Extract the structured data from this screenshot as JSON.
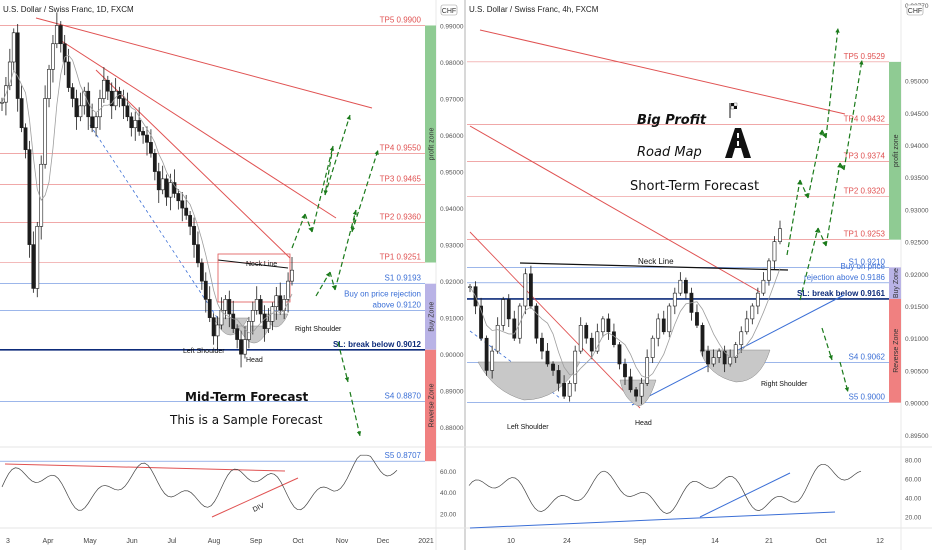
{
  "chart_data": [
    {
      "type": "candlestick",
      "title": "U.S. Dollar / Swiss Franc, 1D, FXCM",
      "currency_badge": "CHF",
      "x_ticks": [
        "3",
        "Apr",
        "May",
        "Jun",
        "Jul",
        "Aug",
        "Sep",
        "Oct",
        "Nov",
        "Dec",
        "2021"
      ],
      "y_ticks": [
        "0.99000",
        "0.98000",
        "0.97000",
        "0.96000",
        "0.95000",
        "0.94000",
        "0.93000",
        "0.92000",
        "0.91000",
        "0.90000",
        "0.89000",
        "0.88000"
      ],
      "ylim": [
        0.8765,
        0.9915
      ],
      "levels": [
        {
          "label": "TP5 0.9900",
          "value": 0.99,
          "color": "#e05252"
        },
        {
          "label": "TP4 0.9550",
          "value": 0.955,
          "color": "#e05252"
        },
        {
          "label": "TP3 0.9465",
          "value": 0.9465,
          "color": "#e05252"
        },
        {
          "label": "TP2 0.9360",
          "value": 0.936,
          "color": "#e05252"
        },
        {
          "label": "TP1 0.9251",
          "value": 0.9251,
          "color": "#e05252"
        },
        {
          "label": "S1 0.9193",
          "value": 0.9193,
          "color": "#3b6fd6"
        },
        {
          "label": "Buy on price rejection",
          "value": null,
          "color": "#3b6fd6"
        },
        {
          "label": "above 0.9120",
          "value": 0.912,
          "color": "#3b6fd6"
        },
        {
          "label": "SL: break below 0.9012",
          "value": 0.9012,
          "color": "#0d2b7a"
        },
        {
          "label": "S4 0.8870",
          "value": 0.887,
          "color": "#3b6fd6"
        },
        {
          "label": "S5 0.8707",
          "value": 0.8707,
          "color": "#3b6fd6"
        }
      ],
      "zones": {
        "profit": "profit zone",
        "buy": "Buy Zone",
        "reverse": "Reverse Zone"
      },
      "annotations": {
        "neck": "Neck Line",
        "left_shoulder": "Left Shoulder",
        "head": "Head",
        "right_shoulder": "Right Shoulder",
        "forecast": "Mid-Term Forecast",
        "sample": "This is a Sample Forecast",
        "div": "DIV"
      },
      "close_path": [
        0.969,
        0.9735,
        0.98,
        0.988,
        0.97,
        0.962,
        0.956,
        0.93,
        0.918,
        0.935,
        0.952,
        0.97,
        0.978,
        0.985,
        0.99,
        0.985,
        0.98,
        0.973,
        0.97,
        0.965,
        0.968,
        0.972,
        0.965,
        0.962,
        0.965,
        0.97,
        0.975,
        0.972,
        0.968,
        0.972,
        0.97,
        0.968,
        0.965,
        0.962,
        0.964,
        0.961,
        0.96,
        0.958,
        0.955,
        0.95,
        0.945,
        0.948,
        0.943,
        0.947,
        0.944,
        0.942,
        0.94,
        0.938,
        0.935,
        0.93,
        0.925,
        0.92,
        0.915,
        0.91,
        0.905,
        0.908,
        0.912,
        0.915,
        0.911,
        0.907,
        0.904,
        0.9,
        0.904,
        0.909,
        0.912,
        0.915,
        0.911,
        0.907,
        0.909,
        0.913,
        0.916,
        0.912,
        0.915,
        0.92,
        0.923
      ],
      "indicator": {
        "ticks": [
          "60.00",
          "40.00",
          "20.00"
        ],
        "ylim": [
          10,
          78
        ]
      }
    },
    {
      "type": "candlestick",
      "title": "U.S. Dollar / Swiss Franc, 4h, FXCM",
      "currency_badge": "CHF",
      "x_ticks": [
        "10",
        "24",
        "Sep",
        "14",
        "21",
        "Oct",
        "12"
      ],
      "y_ticks": [
        "0.95000",
        "0.94500",
        "0.94000",
        "0.93500",
        "0.93000",
        "0.92500",
        "0.92000",
        "0.91500",
        "0.91000",
        "0.90500",
        "0.90000",
        "0.89500"
      ],
      "top_tick": "0.92770",
      "ylim": [
        0.8942,
        0.9594
      ],
      "levels": [
        {
          "label": "TP5 0.9529",
          "value": 0.9529,
          "color": "#e05252"
        },
        {
          "label": "TP4 0.9432",
          "value": 0.9432,
          "color": "#e05252"
        },
        {
          "label": "TP3 0.9374",
          "value": 0.9374,
          "color": "#e05252"
        },
        {
          "label": "TP2 0.9320",
          "value": 0.932,
          "color": "#e05252"
        },
        {
          "label": "TP1 0.9253",
          "value": 0.9253,
          "color": "#e05252"
        },
        {
          "label": "S1 0.9210",
          "value": 0.921,
          "color": "#3b6fd6"
        },
        {
          "label": "Buy on price",
          "value": null,
          "color": "#3b6fd6"
        },
        {
          "label": "rejection above 0.9186",
          "value": 0.9186,
          "color": "#3b6fd6"
        },
        {
          "label": "SL: break below 0.9161",
          "value": 0.9161,
          "color": "#0d2b7a"
        },
        {
          "label": "S4 0.9062",
          "value": 0.9062,
          "color": "#3b6fd6"
        },
        {
          "label": "S5 0.9000",
          "value": 0.9,
          "color": "#3b6fd6"
        }
      ],
      "zones": {
        "profit": "profit zone",
        "buy": "Buy Zone",
        "reverse": "Reverse Zone"
      },
      "annotations": {
        "neck": "Neck Line",
        "left_shoulder": "Left Shoulder",
        "head": "Head",
        "right_shoulder": "Right Shoulder",
        "big_profit": "Big Profit",
        "road_map": "Road Map",
        "forecast": "Short-Term Forecast"
      },
      "close_path": [
        0.918,
        0.915,
        0.91,
        0.905,
        0.908,
        0.912,
        0.916,
        0.913,
        0.91,
        0.915,
        0.92,
        0.915,
        0.91,
        0.908,
        0.906,
        0.905,
        0.903,
        0.901,
        0.903,
        0.908,
        0.912,
        0.91,
        0.908,
        0.911,
        0.913,
        0.911,
        0.909,
        0.906,
        0.904,
        0.902,
        0.901,
        0.903,
        0.907,
        0.91,
        0.913,
        0.911,
        0.915,
        0.917,
        0.919,
        0.917,
        0.914,
        0.912,
        0.908,
        0.906,
        0.907,
        0.908,
        0.906,
        0.907,
        0.909,
        0.911,
        0.913,
        0.915,
        0.917,
        0.919,
        0.922,
        0.925,
        0.927
      ],
      "indicator": {
        "ticks": [
          "80.00",
          "60.00",
          "40.00",
          "20.00"
        ],
        "ylim": [
          12,
          88
        ]
      }
    }
  ]
}
